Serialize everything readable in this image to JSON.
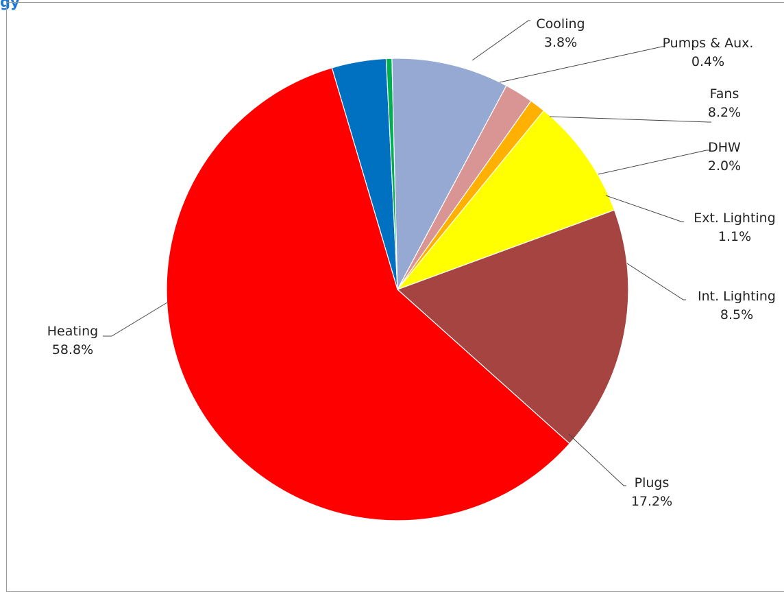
{
  "header_fragment": "gy",
  "chart_data": {
    "type": "pie",
    "title": "",
    "slices": [
      {
        "label": "Cooling",
        "value": 3.8,
        "display": "3.8%",
        "color": "#0070c0"
      },
      {
        "label": "Pumps & Aux.",
        "value": 0.4,
        "display": "0.4%",
        "color": "#00b050"
      },
      {
        "label": "Fans",
        "value": 8.2,
        "display": "8.2%",
        "color": "#95a9d3"
      },
      {
        "label": "DHW",
        "value": 2.0,
        "display": "2.0%",
        "color": "#d99594"
      },
      {
        "label": "Ext. Lighting",
        "value": 1.1,
        "display": "1.1%",
        "color": "#ffb000"
      },
      {
        "label": "Int. Lighting",
        "value": 8.5,
        "display": "8.5%",
        "color": "#ffff00"
      },
      {
        "label": "Plugs",
        "value": 17.2,
        "display": "17.2%",
        "color": "#a64442"
      },
      {
        "label": "Heating",
        "value": 58.8,
        "display": "58.8%",
        "color": "#ff0000"
      }
    ]
  }
}
